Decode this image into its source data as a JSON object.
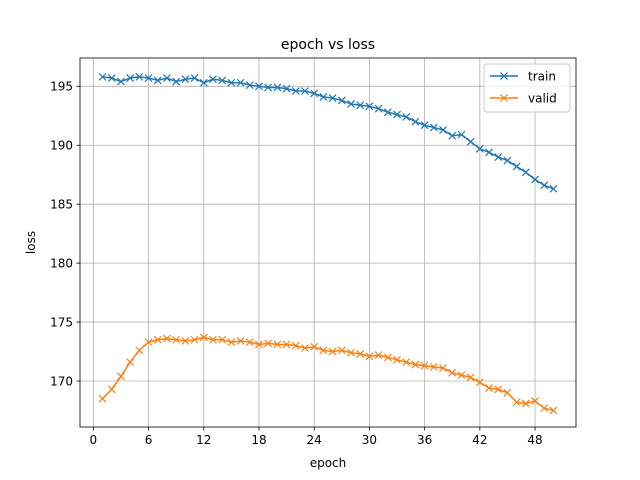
{
  "chart_data": {
    "type": "line",
    "title": "epoch vs loss",
    "xlabel": "epoch",
    "ylabel": "loss",
    "xlim": [
      -1.45,
      52.45
    ],
    "ylim": [
      166.1,
      197.4
    ],
    "xticks": [
      0,
      6,
      12,
      18,
      24,
      30,
      36,
      42,
      48
    ],
    "yticks": [
      170,
      175,
      180,
      185,
      190,
      195
    ],
    "grid": true,
    "legend": "top-right",
    "marker": "x",
    "x": [
      1,
      2,
      3,
      4,
      5,
      6,
      7,
      8,
      9,
      10,
      11,
      12,
      13,
      14,
      15,
      16,
      17,
      18,
      19,
      20,
      21,
      22,
      23,
      24,
      25,
      26,
      27,
      28,
      29,
      30,
      31,
      32,
      33,
      34,
      35,
      36,
      37,
      38,
      39,
      40,
      41,
      42,
      43,
      44,
      45,
      46,
      47,
      48,
      49,
      50
    ],
    "series": [
      {
        "name": "train",
        "color": "#1f77b4",
        "values": [
          195.8,
          195.7,
          195.4,
          195.7,
          195.8,
          195.7,
          195.5,
          195.7,
          195.4,
          195.6,
          195.7,
          195.3,
          195.6,
          195.5,
          195.3,
          195.3,
          195.1,
          195.0,
          194.9,
          194.9,
          194.8,
          194.6,
          194.6,
          194.4,
          194.1,
          194.0,
          193.8,
          193.5,
          193.4,
          193.3,
          193.1,
          192.8,
          192.6,
          192.4,
          192.0,
          191.7,
          191.5,
          191.3,
          190.8,
          190.9,
          190.3,
          189.7,
          189.4,
          189.0,
          188.7,
          188.2,
          187.7,
          187.1,
          186.6,
          186.3
        ]
      },
      {
        "name": "valid",
        "color": "#ff7f0e",
        "values": [
          168.5,
          169.3,
          170.4,
          171.6,
          172.6,
          173.3,
          173.5,
          173.6,
          173.5,
          173.4,
          173.5,
          173.7,
          173.5,
          173.5,
          173.3,
          173.4,
          173.3,
          173.1,
          173.2,
          173.1,
          173.1,
          173.0,
          172.8,
          172.9,
          172.6,
          172.5,
          172.6,
          172.4,
          172.3,
          172.1,
          172.2,
          172.0,
          171.8,
          171.6,
          171.4,
          171.3,
          171.2,
          171.1,
          170.7,
          170.5,
          170.3,
          169.9,
          169.4,
          169.3,
          169.0,
          168.2,
          168.1,
          168.3,
          167.7,
          167.5
        ]
      }
    ]
  }
}
